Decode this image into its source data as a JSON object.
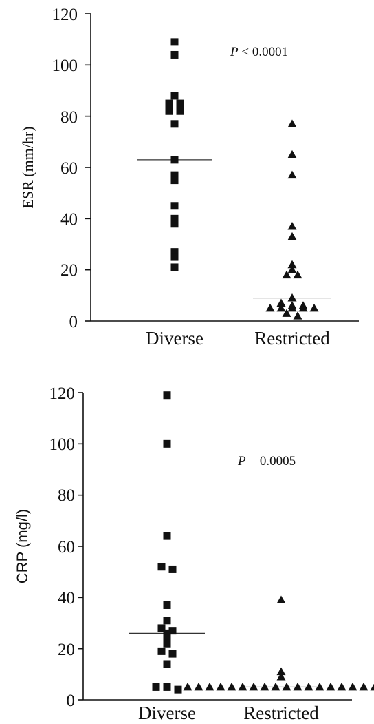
{
  "chart_data": [
    {
      "type": "scatter",
      "ylabel": "ESR (mm/hr)",
      "ylim": [
        0,
        120
      ],
      "yticks": [
        "0",
        "20",
        "40",
        "60",
        "80",
        "100",
        "120"
      ],
      "categories": [
        "Diverse",
        "Restricted"
      ],
      "annotation": {
        "italic": "P",
        "rest": " < 0.0001"
      },
      "series": [
        {
          "category": "Diverse",
          "marker": "square",
          "median": 63,
          "values": [
            109,
            104,
            88,
            85,
            85,
            82,
            82,
            77,
            63,
            57,
            55,
            45,
            40,
            38,
            27,
            25,
            21
          ]
        },
        {
          "category": "Restricted",
          "marker": "triangle",
          "median": 9,
          "values": [
            77,
            65,
            57,
            37,
            33,
            22,
            20,
            18,
            18,
            9,
            7,
            6,
            6,
            5,
            5,
            5,
            5,
            5,
            3,
            2
          ]
        }
      ]
    },
    {
      "type": "scatter",
      "ylabel": "CRP (mg/l)",
      "ylim": [
        0,
        120
      ],
      "yticks": [
        "0",
        "20",
        "40",
        "60",
        "80",
        "100",
        "120"
      ],
      "categories": [
        "Diverse",
        "Restricted"
      ],
      "annotation": {
        "italic": "P",
        "rest": " = 0.0005"
      },
      "series": [
        {
          "category": "Diverse",
          "marker": "square",
          "median": 26,
          "values": [
            119,
            100,
            64,
            52,
            51,
            37,
            31,
            28,
            27,
            26,
            24,
            22,
            19,
            18,
            14,
            5,
            5,
            4
          ]
        },
        {
          "category": "Restricted",
          "marker": "triangle",
          "median": 5,
          "values": [
            39,
            11,
            9,
            5,
            5,
            5,
            5,
            5,
            5,
            5,
            5,
            5,
            5,
            5,
            5,
            5,
            5,
            5,
            5,
            5,
            5
          ]
        }
      ]
    }
  ]
}
